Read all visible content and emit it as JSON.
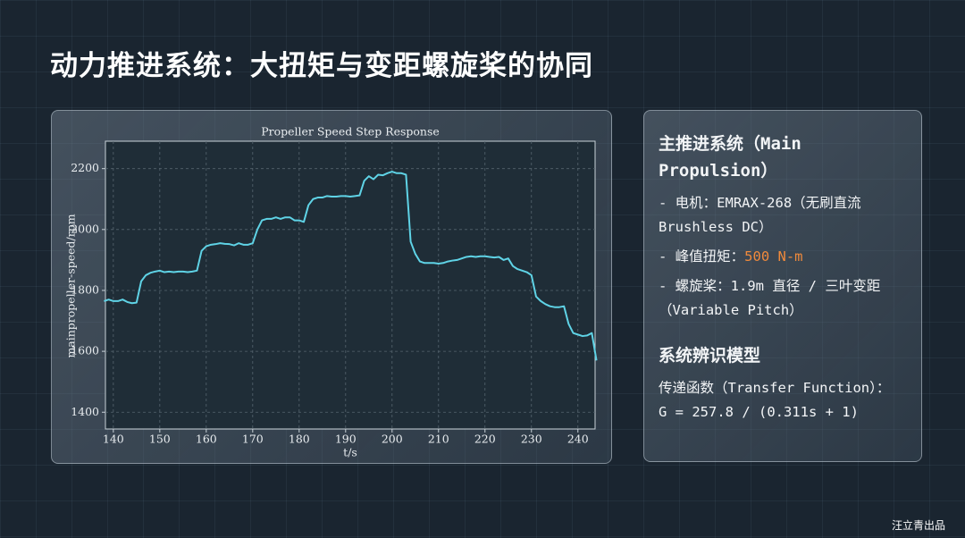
{
  "title": "动力推进系统：大扭矩与变距螺旋桨的协同",
  "chart_data": {
    "type": "line",
    "title": "Propeller Speed Step Response",
    "x_label": "t/s",
    "y_label": "mainpropeller-speed/rpm",
    "color": "#5fd3e6",
    "grid": true,
    "xlim": [
      138.3,
      243.7
    ],
    "ylim": [
      1345,
      2290
    ],
    "xticks": [
      140,
      150,
      160,
      170,
      180,
      190,
      200,
      210,
      220,
      230,
      240
    ],
    "yticks": [
      1400,
      1600,
      1800,
      2000,
      2200
    ],
    "x": [
      138,
      139,
      140,
      141,
      142,
      143,
      144,
      145,
      146,
      147,
      148,
      149,
      150,
      151,
      152,
      153,
      154,
      155,
      156,
      157,
      158,
      159,
      160,
      161,
      162,
      163,
      164,
      165,
      166,
      167,
      168,
      169,
      170,
      171,
      172,
      173,
      174,
      175,
      176,
      177,
      178,
      179,
      180,
      181,
      182,
      183,
      184,
      185,
      186,
      187,
      188,
      189,
      190,
      191,
      192,
      193,
      194,
      195,
      196,
      197,
      198,
      199,
      200,
      201,
      202,
      203,
      204,
      205,
      206,
      207,
      208,
      209,
      210,
      211,
      212,
      213,
      214,
      215,
      216,
      217,
      218,
      219,
      220,
      221,
      222,
      223,
      224,
      225,
      226,
      227,
      228,
      229,
      230,
      231,
      232,
      233,
      234,
      235,
      236,
      237,
      238,
      239,
      240,
      241,
      242,
      243,
      244
    ],
    "values": [
      1765,
      1770,
      1765,
      1765,
      1770,
      1762,
      1758,
      1760,
      1830,
      1850,
      1858,
      1862,
      1865,
      1860,
      1862,
      1860,
      1862,
      1862,
      1860,
      1862,
      1865,
      1930,
      1945,
      1950,
      1952,
      1955,
      1953,
      1952,
      1948,
      1955,
      1950,
      1950,
      1955,
      2000,
      2030,
      2035,
      2035,
      2040,
      2035,
      2040,
      2040,
      2030,
      2030,
      2025,
      2080,
      2100,
      2105,
      2105,
      2110,
      2108,
      2108,
      2110,
      2110,
      2108,
      2110,
      2112,
      2160,
      2175,
      2165,
      2180,
      2178,
      2185,
      2190,
      2185,
      2185,
      2180,
      1960,
      1920,
      1895,
      1890,
      1890,
      1890,
      1888,
      1890,
      1895,
      1898,
      1900,
      1905,
      1910,
      1912,
      1910,
      1912,
      1912,
      1910,
      1908,
      1910,
      1900,
      1905,
      1880,
      1870,
      1865,
      1860,
      1850,
      1780,
      1765,
      1755,
      1748,
      1745,
      1745,
      1748,
      1690,
      1660,
      1655,
      1650,
      1652,
      1660,
      1570
    ]
  },
  "panel": {
    "heading": "主推进系统（Main Propulsion）",
    "motor": "- 电机：EMRAX-268（无刷直流 Brushless DC）",
    "torque_label": "- 峰值扭矩：",
    "torque_value": "500 N-m",
    "propeller": "- 螺旋桨：1.9m 直径 / 三叶变距（Variable Pitch）",
    "model_heading": "系统辨识模型",
    "tf_label": "传递函数（Transfer Function）：",
    "tf": "G = 257.8 / (0.311s + 1)"
  },
  "footer": "汪立青出品"
}
